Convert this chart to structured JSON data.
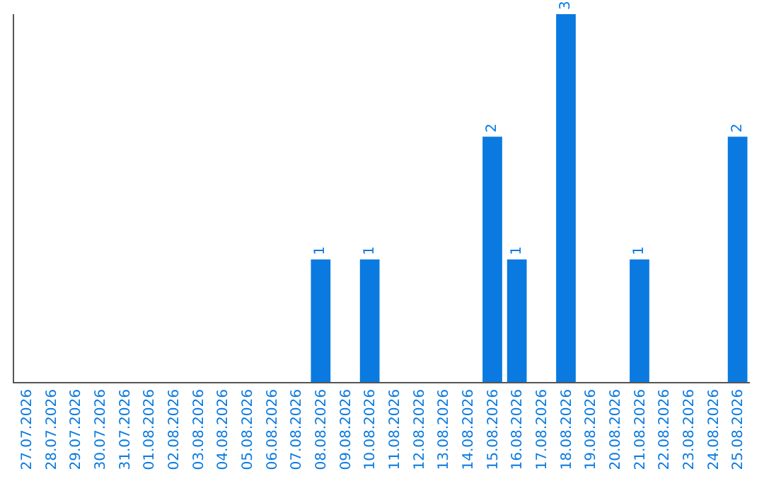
{
  "chart_data": {
    "type": "bar",
    "categories": [
      "27.07.2026",
      "28.07.2026",
      "29.07.2026",
      "30.07.2026",
      "31.07.2026",
      "01.08.2026",
      "02.08.2026",
      "03.08.2026",
      "04.08.2026",
      "05.08.2026",
      "06.08.2026",
      "07.08.2026",
      "08.08.2026",
      "09.08.2026",
      "10.08.2026",
      "11.08.2026",
      "12.08.2026",
      "13.08.2026",
      "14.08.2026",
      "15.08.2026",
      "16.08.2026",
      "17.08.2026",
      "18.08.2026",
      "19.08.2026",
      "20.08.2026",
      "21.08.2026",
      "22.08.2026",
      "23.08.2026",
      "24.08.2026",
      "25.08.2026"
    ],
    "values": [
      null,
      null,
      null,
      null,
      null,
      null,
      null,
      null,
      null,
      null,
      null,
      null,
      1,
      null,
      1,
      null,
      null,
      null,
      null,
      2,
      1,
      null,
      3,
      null,
      null,
      1,
      null,
      null,
      null,
      2
    ],
    "data_labels": true,
    "color": "#0a7ae0",
    "ylim": [
      0,
      3
    ],
    "tick_labels": "x",
    "grid": false,
    "legend": false
  }
}
